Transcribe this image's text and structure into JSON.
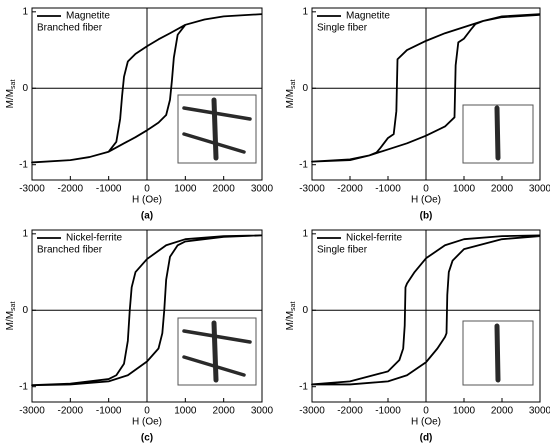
{
  "chart_data": [
    {
      "type": "line",
      "caption": "(a)",
      "annotation": "Branched fiber",
      "xlabel": "H (Oe)",
      "ylabel": "M/M",
      "ylabel_sub": "sat",
      "xlim": [
        -3000,
        3000
      ],
      "xticks": [
        -3000,
        -2000,
        -1000,
        0,
        1000,
        2000,
        3000
      ],
      "ylim": [
        -1.2,
        1.05
      ],
      "yticks": [
        -1,
        0,
        1
      ],
      "legend": "upper-left",
      "x": [
        3000,
        2000,
        1500,
        1000,
        600,
        300,
        0,
        -300,
        -500,
        -600,
        -650,
        -700,
        -800,
        -1000,
        -1500,
        -2000,
        -3000,
        -2000,
        -1500,
        -1000,
        -600,
        -300,
        0,
        300,
        500,
        600,
        650,
        700,
        800,
        1000,
        1500,
        2000,
        3000
      ],
      "series": [
        {
          "name": "Magnetite",
          "color": "#000000",
          "values": [
            0.97,
            0.94,
            0.9,
            0.83,
            0.72,
            0.64,
            0.55,
            0.45,
            0.35,
            0.15,
            -0.1,
            -0.4,
            -0.7,
            -0.83,
            -0.9,
            -0.94,
            -0.97,
            -0.94,
            -0.9,
            -0.83,
            -0.72,
            -0.64,
            -0.55,
            -0.45,
            -0.35,
            -0.15,
            0.1,
            0.4,
            0.7,
            0.83,
            0.9,
            0.94,
            0.97
          ]
        }
      ]
    },
    {
      "type": "line",
      "caption": "(b)",
      "annotation": "Single fiber",
      "xlabel": "H (Oe)",
      "ylabel": "M/M",
      "ylabel_sub": "sat",
      "xlim": [
        -3000,
        3000
      ],
      "xticks": [
        -3000,
        -2000,
        -1000,
        0,
        1000,
        2000,
        3000
      ],
      "ylim": [
        -1.2,
        1.05
      ],
      "yticks": [
        -1,
        0,
        1
      ],
      "legend": "upper-left",
      "x": [
        3000,
        2000,
        1500,
        1000,
        500,
        0,
        -500,
        -750,
        -780,
        -850,
        -1000,
        -1200,
        -1300,
        -1500,
        -2000,
        -3000,
        -2000,
        -1500,
        -1000,
        -500,
        0,
        500,
        750,
        780,
        850,
        1000,
        1200,
        1300,
        1500,
        2000,
        3000
      ],
      "series": [
        {
          "name": "Magnetite",
          "color": "#000000",
          "values": [
            0.97,
            0.94,
            0.88,
            0.8,
            0.72,
            0.62,
            0.5,
            0.38,
            -0.3,
            -0.6,
            -0.65,
            -0.78,
            -0.84,
            -0.88,
            -0.93,
            -0.96,
            -0.94,
            -0.88,
            -0.8,
            -0.72,
            -0.62,
            -0.5,
            -0.38,
            0.3,
            0.6,
            0.65,
            0.78,
            0.84,
            0.88,
            0.93,
            0.96
          ]
        }
      ]
    },
    {
      "type": "line",
      "caption": "(c)",
      "annotation": "Branched fiber",
      "xlabel": "H (Oe)",
      "ylabel": "M/M",
      "ylabel_sub": "sat",
      "xlim": [
        -3000,
        3000
      ],
      "xticks": [
        -3000,
        -2000,
        -1000,
        0,
        1000,
        2000,
        3000
      ],
      "ylim": [
        -1.2,
        1.05
      ],
      "yticks": [
        -1,
        0,
        1
      ],
      "legend": "upper-left",
      "x": [
        3000,
        2000,
        1000,
        500,
        0,
        -300,
        -400,
        -450,
        -500,
        -600,
        -800,
        -1000,
        -2000,
        -3000,
        -2000,
        -1000,
        -500,
        0,
        300,
        400,
        450,
        500,
        600,
        800,
        1000,
        2000,
        3000
      ],
      "series": [
        {
          "name": "Nickel-ferrite",
          "color": "#000000",
          "values": [
            0.98,
            0.97,
            0.93,
            0.85,
            0.67,
            0.5,
            0.3,
            0,
            -0.4,
            -0.7,
            -0.85,
            -0.9,
            -0.96,
            -0.98,
            -0.97,
            -0.93,
            -0.85,
            -0.67,
            -0.5,
            -0.3,
            0,
            0.4,
            0.7,
            0.85,
            0.9,
            0.96,
            0.98
          ]
        }
      ]
    },
    {
      "type": "line",
      "caption": "(d)",
      "annotation": "Single fiber",
      "xlabel": "H (Oe)",
      "ylabel": "M/M",
      "ylabel_sub": "sat",
      "xlim": [
        -3000,
        3000
      ],
      "xticks": [
        -3000,
        -2000,
        -1000,
        0,
        1000,
        2000,
        3000
      ],
      "ylim": [
        -1.2,
        1.05
      ],
      "yticks": [
        -1,
        0,
        1
      ],
      "legend": "upper-left",
      "x": [
        3000,
        2000,
        1000,
        500,
        0,
        -300,
        -500,
        -540,
        -560,
        -600,
        -700,
        -1000,
        -2000,
        -3000,
        -2000,
        -1000,
        -500,
        0,
        300,
        500,
        540,
        560,
        600,
        700,
        1000,
        2000,
        3000
      ],
      "series": [
        {
          "name": "Nickel-ferrite",
          "color": "#000000",
          "values": [
            0.98,
            0.97,
            0.93,
            0.85,
            0.68,
            0.5,
            0.35,
            0.3,
            -0.2,
            -0.5,
            -0.65,
            -0.8,
            -0.93,
            -0.97,
            -0.97,
            -0.93,
            -0.85,
            -0.68,
            -0.5,
            -0.35,
            -0.3,
            0.2,
            0.5,
            0.65,
            0.8,
            0.93,
            0.97
          ]
        }
      ]
    }
  ]
}
